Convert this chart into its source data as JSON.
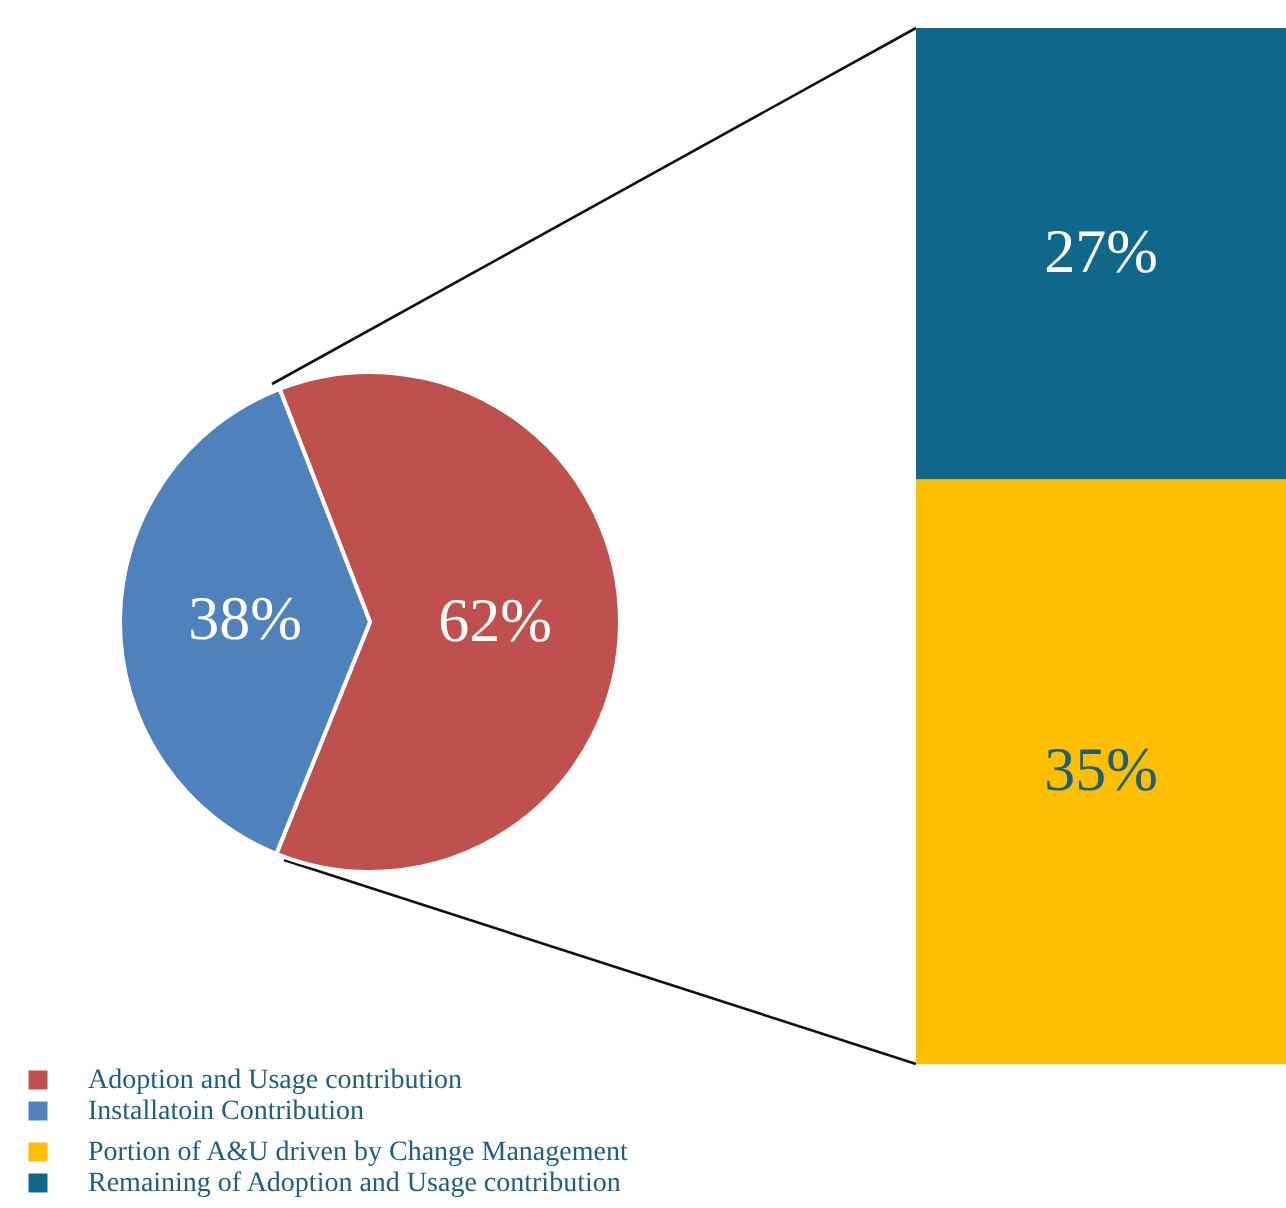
{
  "chart_data": [
    {
      "type": "pie",
      "categories": [
        "Adoption and Usage contribution",
        "Installatoin Contribution"
      ],
      "values": [
        62,
        38
      ],
      "colors": [
        "#c0504d",
        "#4f81bd"
      ],
      "value_labels": [
        "62%",
        "38%"
      ],
      "legend": "bottom left"
    },
    {
      "type": "bar",
      "stacked": true,
      "categories": [
        null
      ],
      "series": [
        {
          "name": "Portion of A&U driven by Change Management",
          "color": "#fdbf00",
          "values": [
            35
          ],
          "value_labels": [
            "35%"
          ]
        },
        {
          "name": "Remaining of Adoption and Usage contribution",
          "color": "#0f678a",
          "values": [
            27
          ],
          "value_labels": [
            "27%"
          ]
        }
      ],
      "legend": "bottom left"
    }
  ]
}
